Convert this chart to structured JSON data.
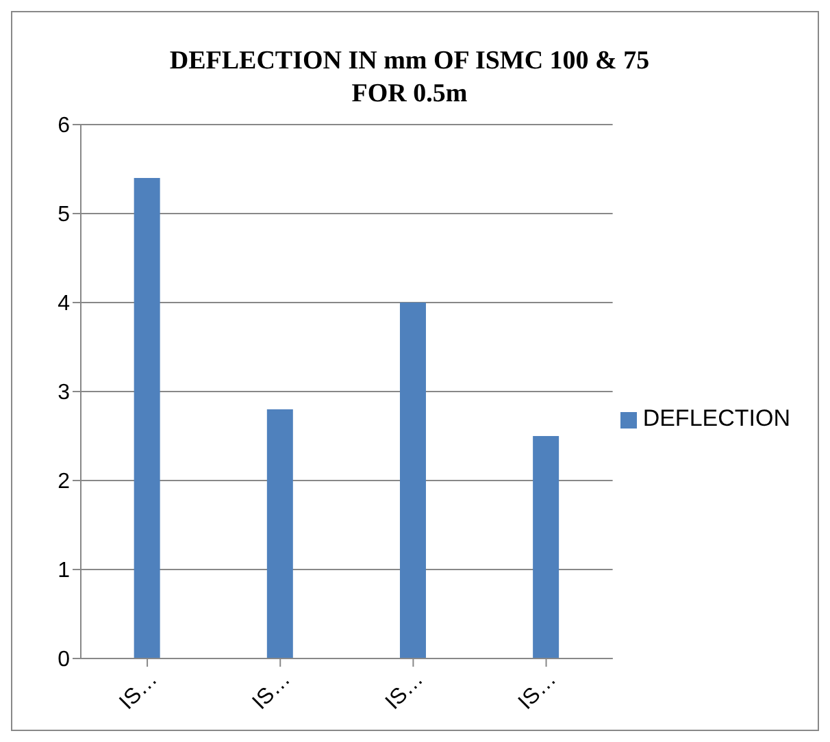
{
  "chart_data": {
    "type": "bar",
    "title": "DEFLECTION IN mm OF ISMC 100 & 75 FOR 0.5m",
    "categories": [
      "IS…",
      "IS…",
      "IS…",
      "IS…"
    ],
    "series": [
      {
        "name": "DEFLECTION",
        "color": "#4f81bd",
        "values": [
          5.4,
          2.8,
          4.0,
          2.5
        ]
      }
    ],
    "ylim": [
      0,
      6
    ],
    "yticks": [
      0,
      1,
      2,
      3,
      4,
      5,
      6
    ],
    "grid": "y",
    "legend": "right"
  }
}
